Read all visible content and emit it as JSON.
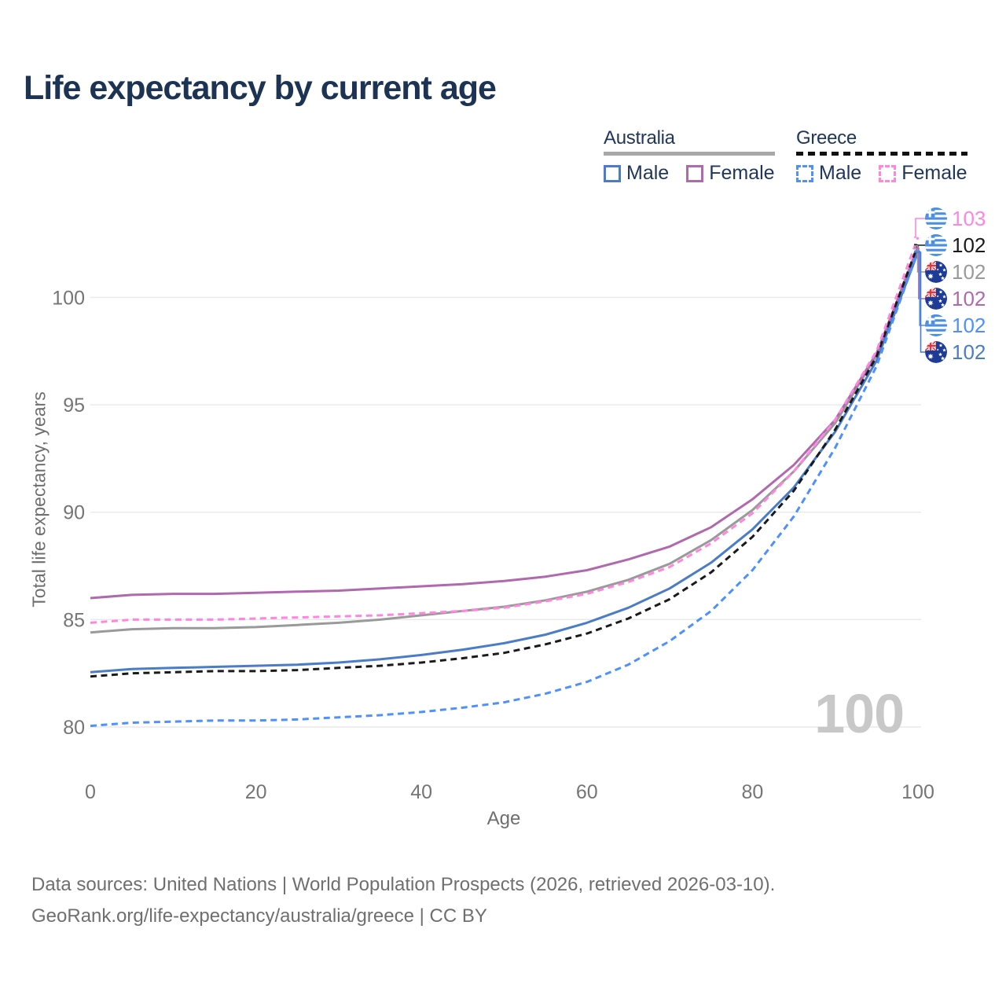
{
  "title": "Life expectancy by current age",
  "legend": {
    "groups": [
      {
        "label": "Australia",
        "line_style": "solid",
        "line_color": "#a8a8a8",
        "items": [
          {
            "label": "Male",
            "style": "solid",
            "color": "#4a7cc7"
          },
          {
            "label": "Female",
            "style": "solid",
            "color": "#b069ae"
          }
        ]
      },
      {
        "label": "Greece",
        "line_style": "dashed",
        "line_color": "#111111",
        "items": [
          {
            "label": "Male",
            "style": "dashed",
            "color": "#4d90fe"
          },
          {
            "label": "Female",
            "style": "dashed",
            "color": "#ff85e0"
          }
        ]
      }
    ]
  },
  "watermark_age": "100",
  "footer": {
    "line1": "Data sources: United Nations | World Population Prospects (2026, retrieved 2026-03-10).",
    "line2": "GeoRank.org/life-expectancy/australia/greece | CC BY"
  },
  "colors": {
    "title": "#1c3353",
    "axis_text": "#757575",
    "gridline": "#e9e9e9",
    "watermark": "#c8c8c8",
    "footer_text": "#6f6f6f"
  },
  "chart_data": {
    "type": "line",
    "title": "Life expectancy by current age",
    "xlabel": "Age",
    "ylabel": "Total life expectancy, years",
    "x_ticks": [
      0,
      20,
      40,
      60,
      80,
      100
    ],
    "y_ticks": [
      80,
      85,
      90,
      95,
      100
    ],
    "xlim": [
      0,
      100
    ],
    "ylim": [
      79.2,
      103.6
    ],
    "grid": "horizontal",
    "legend_position": "top-right",
    "ages": [
      0,
      5,
      10,
      15,
      20,
      25,
      30,
      35,
      40,
      45,
      50,
      55,
      60,
      65,
      70,
      75,
      80,
      85,
      90,
      95,
      100
    ],
    "series": [
      {
        "id": "australia_all",
        "name": "Australia",
        "country": "Australia",
        "sex": "all",
        "style": "solid",
        "color": "#9a9a9a",
        "values": [
          84.4,
          84.55,
          84.6,
          84.6,
          84.65,
          84.75,
          84.85,
          85.0,
          85.2,
          85.4,
          85.6,
          85.9,
          86.3,
          86.85,
          87.6,
          88.7,
          90.1,
          91.9,
          94.15,
          97.3,
          102.4
        ]
      },
      {
        "id": "australia_female",
        "name": "Australia Female",
        "country": "Australia",
        "sex": "female",
        "style": "solid",
        "color": "#b069ae",
        "values": [
          86.0,
          86.15,
          86.2,
          86.2,
          86.25,
          86.3,
          86.35,
          86.45,
          86.55,
          86.65,
          86.8,
          87.0,
          87.3,
          87.8,
          88.4,
          89.3,
          90.6,
          92.2,
          94.3,
          97.4,
          102.3
        ]
      },
      {
        "id": "australia_male",
        "name": "Australia Male",
        "country": "Australia",
        "sex": "male",
        "style": "solid",
        "color": "#4a7cc7",
        "values": [
          82.55,
          82.7,
          82.75,
          82.8,
          82.85,
          82.9,
          83.0,
          83.15,
          83.35,
          83.6,
          83.9,
          84.3,
          84.85,
          85.55,
          86.45,
          87.65,
          89.2,
          91.15,
          93.75,
          97.05,
          102.1
        ]
      },
      {
        "id": "greece_all",
        "name": "Greece",
        "country": "Greece",
        "sex": "all",
        "style": "dashed",
        "color": "#1a1a1a",
        "values": [
          82.35,
          82.5,
          82.55,
          82.6,
          82.6,
          82.65,
          82.75,
          82.85,
          83.0,
          83.2,
          83.45,
          83.85,
          84.35,
          85.05,
          85.95,
          87.2,
          88.85,
          91.0,
          93.85,
          97.25,
          102.45
        ]
      },
      {
        "id": "greece_female",
        "name": "Greece Female",
        "country": "Greece",
        "sex": "female",
        "style": "dashed",
        "color": "#ff85e0",
        "values": [
          84.85,
          85.0,
          85.0,
          85.0,
          85.05,
          85.1,
          85.15,
          85.2,
          85.3,
          85.4,
          85.55,
          85.85,
          86.2,
          86.75,
          87.45,
          88.55,
          89.95,
          91.9,
          94.3,
          97.5,
          102.8
        ]
      },
      {
        "id": "greece_male",
        "name": "Greece Male",
        "country": "Greece",
        "sex": "male",
        "style": "dashed",
        "color": "#4d90fe",
        "values": [
          80.05,
          80.2,
          80.25,
          80.3,
          80.3,
          80.35,
          80.45,
          80.55,
          80.7,
          80.9,
          81.15,
          81.55,
          82.1,
          82.9,
          84.0,
          85.4,
          87.3,
          89.8,
          93.0,
          96.8,
          102.15
        ]
      }
    ],
    "end_labels": [
      {
        "series": "greece_female",
        "flag": "greece",
        "value": "103",
        "color": "#ff85e0"
      },
      {
        "series": "greece_all",
        "flag": "greece",
        "value": "102",
        "color": "#1a1a1a"
      },
      {
        "series": "australia_all",
        "flag": "australia",
        "value": "102",
        "color": "#9a9a9a"
      },
      {
        "series": "australia_female",
        "flag": "australia",
        "value": "102",
        "color": "#b069ae"
      },
      {
        "series": "greece_male",
        "flag": "greece",
        "value": "102",
        "color": "#4d90fe"
      },
      {
        "series": "australia_male",
        "flag": "australia",
        "value": "102",
        "color": "#4a7cc7"
      }
    ]
  }
}
